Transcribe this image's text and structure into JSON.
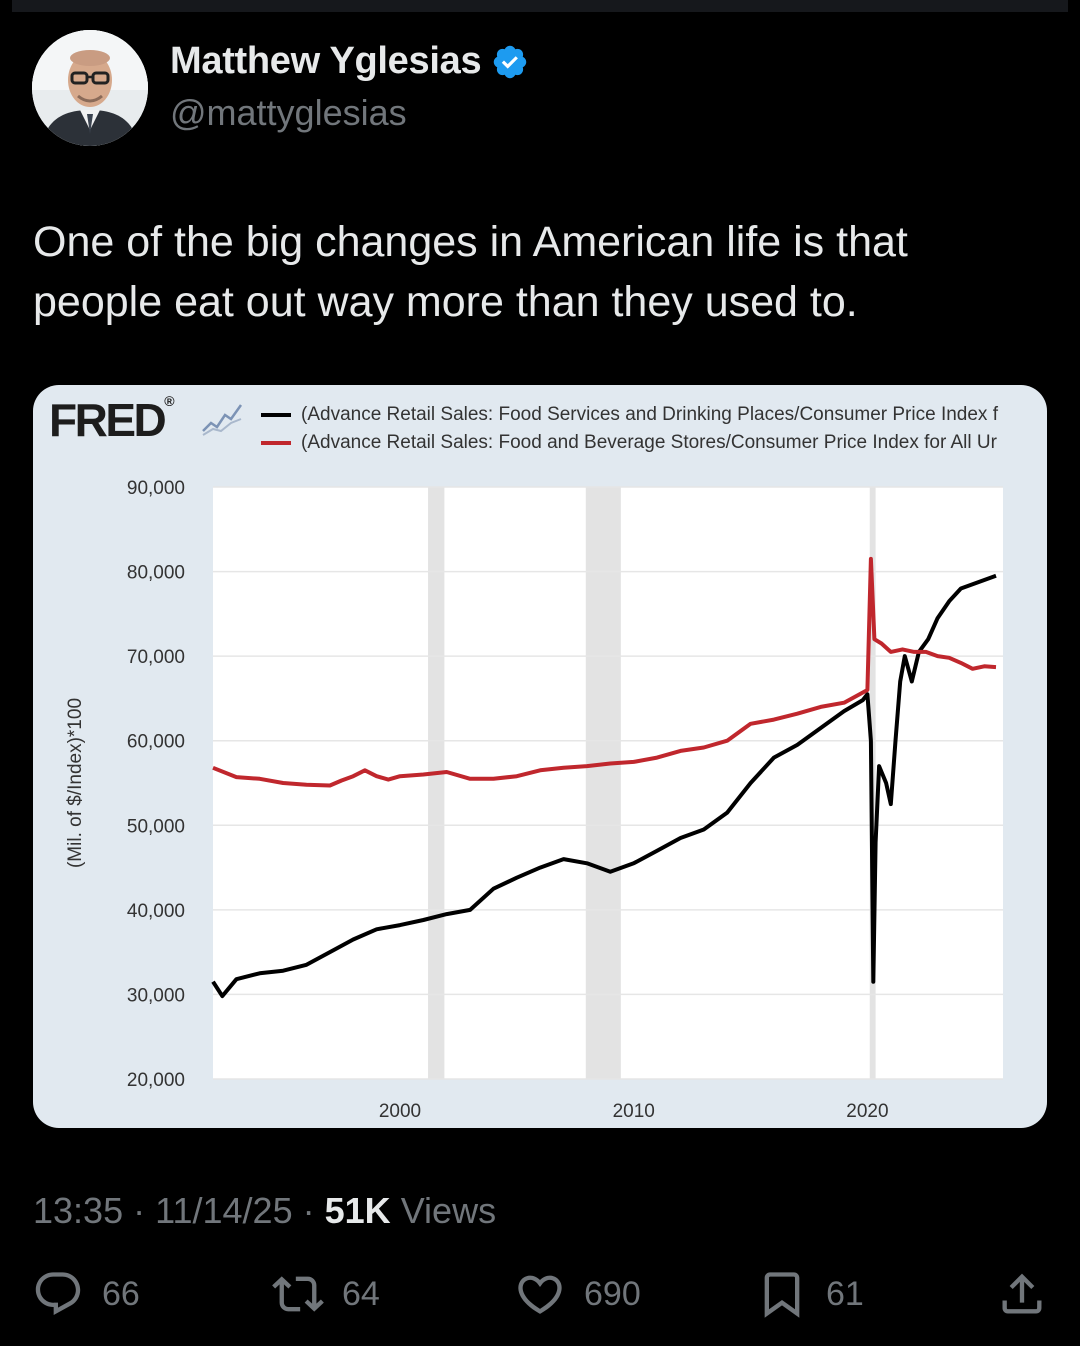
{
  "post": {
    "author_name": "Matthew Yglesias",
    "handle": "@mattyglesias",
    "text": "One of the big changes in American life is that\npeople eat out way more than they used to.",
    "time": "13:35",
    "date": "11/14/25",
    "views_count": "51K",
    "views_label": "Views",
    "separator": "·"
  },
  "actions": {
    "replies": "66",
    "reposts": "64",
    "likes": "690",
    "bookmarks": "61"
  },
  "icons": {
    "verified": "verified-badge-icon",
    "reply": "reply-icon",
    "repost": "repost-icon",
    "like": "heart-icon",
    "bookmark": "bookmark-icon",
    "share": "share-icon"
  },
  "colors": {
    "background": "#000000",
    "text": "#e7e9ea",
    "muted": "#71767b",
    "verified": "#1d9bf0"
  },
  "fred": {
    "logo": "FRED",
    "logo_mark": "®"
  },
  "chart_data": {
    "type": "line",
    "ylabel": "(Mil. of $/Index)*100",
    "xlim": [
      1992,
      2025.8
    ],
    "ylim": [
      20000,
      90000
    ],
    "y_ticks": [
      "20,000",
      "30,000",
      "40,000",
      "50,000",
      "60,000",
      "70,000",
      "80,000",
      "90,000"
    ],
    "y_tick_values": [
      20000,
      30000,
      40000,
      50000,
      60000,
      70000,
      80000,
      90000
    ],
    "x_ticks": [
      "2000",
      "2010",
      "2020"
    ],
    "x_tick_values": [
      2000,
      2010,
      2020
    ],
    "recessions": [
      [
        2001.2,
        2001.9
      ],
      [
        2007.95,
        2009.45
      ],
      [
        2020.1,
        2020.35
      ]
    ],
    "grid": true,
    "series": [
      {
        "name": "(Advance Retail Sales: Food Services and Drinking Places/Consumer Price Index f",
        "color": "#000000",
        "points": [
          [
            1992.0,
            31500
          ],
          [
            1992.4,
            29800
          ],
          [
            1993.0,
            31800
          ],
          [
            1994.0,
            32500
          ],
          [
            1995.0,
            32800
          ],
          [
            1996.0,
            33500
          ],
          [
            1997.0,
            35000
          ],
          [
            1998.0,
            36500
          ],
          [
            1999.0,
            37700
          ],
          [
            2000.0,
            38200
          ],
          [
            2001.0,
            38800
          ],
          [
            2002.0,
            39500
          ],
          [
            2003.0,
            40000
          ],
          [
            2004.0,
            42500
          ],
          [
            2005.0,
            43800
          ],
          [
            2006.0,
            45000
          ],
          [
            2007.0,
            46000
          ],
          [
            2008.0,
            45500
          ],
          [
            2009.0,
            44500
          ],
          [
            2010.0,
            45500
          ],
          [
            2011.0,
            47000
          ],
          [
            2012.0,
            48500
          ],
          [
            2013.0,
            49500
          ],
          [
            2014.0,
            51500
          ],
          [
            2015.0,
            55000
          ],
          [
            2016.0,
            58000
          ],
          [
            2017.0,
            59500
          ],
          [
            2018.0,
            61500
          ],
          [
            2019.0,
            63500
          ],
          [
            2019.8,
            64800
          ],
          [
            2020.0,
            65500
          ],
          [
            2020.15,
            60000
          ],
          [
            2020.25,
            31500
          ],
          [
            2020.35,
            48000
          ],
          [
            2020.5,
            57000
          ],
          [
            2020.8,
            55000
          ],
          [
            2021.0,
            52500
          ],
          [
            2021.2,
            60000
          ],
          [
            2021.4,
            67000
          ],
          [
            2021.6,
            70000
          ],
          [
            2021.9,
            67000
          ],
          [
            2022.2,
            70500
          ],
          [
            2022.6,
            72000
          ],
          [
            2023.0,
            74500
          ],
          [
            2023.5,
            76500
          ],
          [
            2024.0,
            78000
          ],
          [
            2024.5,
            78500
          ],
          [
            2025.0,
            79000
          ],
          [
            2025.5,
            79500
          ]
        ]
      },
      {
        "name": "(Advance Retail Sales: Food and Beverage Stores/Consumer Price Index for All Ur",
        "color": "#c0272d",
        "points": [
          [
            1992.0,
            56800
          ],
          [
            1993.0,
            55700
          ],
          [
            1994.0,
            55500
          ],
          [
            1995.0,
            55000
          ],
          [
            1996.0,
            54800
          ],
          [
            1997.0,
            54700
          ],
          [
            1997.5,
            55300
          ],
          [
            1998.0,
            55800
          ],
          [
            1998.5,
            56500
          ],
          [
            1999.0,
            55800
          ],
          [
            1999.5,
            55400
          ],
          [
            2000.0,
            55800
          ],
          [
            2001.0,
            56000
          ],
          [
            2002.0,
            56300
          ],
          [
            2003.0,
            55500
          ],
          [
            2004.0,
            55500
          ],
          [
            2005.0,
            55800
          ],
          [
            2006.0,
            56500
          ],
          [
            2007.0,
            56800
          ],
          [
            2008.0,
            57000
          ],
          [
            2009.0,
            57300
          ],
          [
            2010.0,
            57500
          ],
          [
            2011.0,
            58000
          ],
          [
            2012.0,
            58800
          ],
          [
            2013.0,
            59200
          ],
          [
            2014.0,
            60000
          ],
          [
            2015.0,
            62000
          ],
          [
            2016.0,
            62500
          ],
          [
            2017.0,
            63200
          ],
          [
            2018.0,
            64000
          ],
          [
            2019.0,
            64500
          ],
          [
            2020.0,
            66000
          ],
          [
            2020.15,
            81500
          ],
          [
            2020.3,
            72000
          ],
          [
            2020.6,
            71500
          ],
          [
            2021.0,
            70500
          ],
          [
            2021.5,
            70800
          ],
          [
            2022.0,
            70500
          ],
          [
            2022.5,
            70500
          ],
          [
            2023.0,
            70000
          ],
          [
            2023.5,
            69800
          ],
          [
            2024.0,
            69200
          ],
          [
            2024.5,
            68500
          ],
          [
            2025.0,
            68800
          ],
          [
            2025.5,
            68700
          ]
        ]
      }
    ]
  }
}
